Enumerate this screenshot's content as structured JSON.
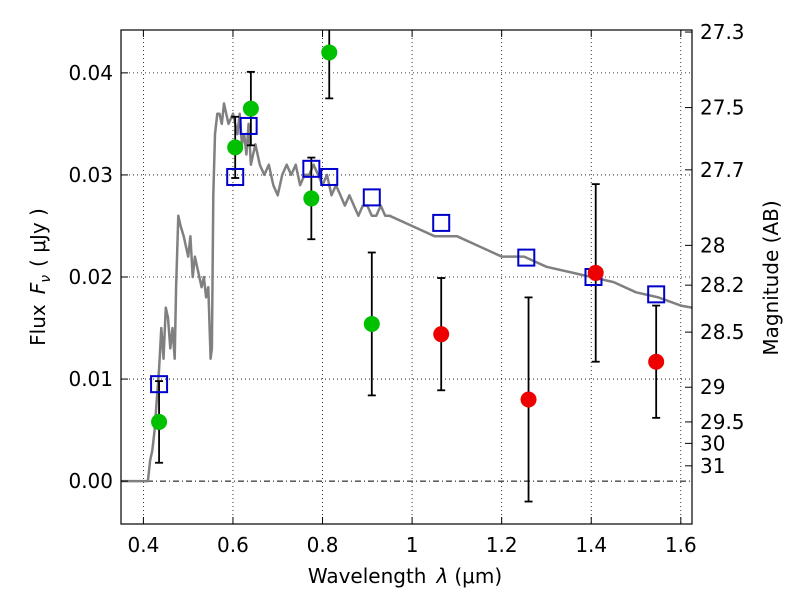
{
  "chart_data": {
    "type": "scatter",
    "xlabel": "Wavelength",
    "xlabel_symbol": "λ",
    "xlabel_unit": "(μm)",
    "ylabel": "Flux",
    "ylabel_symbol": "F",
    "ylabel_subscript": "ν",
    "ylabel_unit": "( μJy )",
    "y2label": "Magnitude (AB)",
    "xlim": [
      0.35,
      1.625
    ],
    "ylim": [
      -0.0042,
      0.0442
    ],
    "grid": true,
    "x_ticks": [
      0.4,
      0.6,
      0.8,
      1.0,
      1.2,
      1.4,
      1.6
    ],
    "x_tick_labels": [
      "0.4",
      "0.6",
      "0.8",
      "1",
      "1.2",
      "1.4",
      "1.6"
    ],
    "y_ticks": [
      0.0,
      0.01,
      0.02,
      0.03,
      0.04
    ],
    "y_tick_labels": [
      "0.00",
      "0.01",
      "0.02",
      "0.03",
      "0.04"
    ],
    "y2_ticks": [
      {
        "label": "27.3",
        "flux": 0.044
      },
      {
        "label": "27.5",
        "flux": 0.0366
      },
      {
        "label": "27.7",
        "flux": 0.0305
      },
      {
        "label": "28",
        "flux": 0.0231
      },
      {
        "label": "28.2",
        "flux": 0.0192
      },
      {
        "label": "28.5",
        "flux": 0.0146
      },
      {
        "label": "29",
        "flux": 0.0092
      },
      {
        "label": "29.5",
        "flux": 0.0058
      },
      {
        "label": "30",
        "flux": 0.0037
      },
      {
        "label": "31",
        "flux": 0.0015
      }
    ],
    "series": [
      {
        "kind": "line",
        "color": "#808080",
        "x": [
          0.35,
          0.41,
          0.415,
          0.42,
          0.425,
          0.43,
          0.435,
          0.44,
          0.445,
          0.45,
          0.455,
          0.46,
          0.465,
          0.47,
          0.473,
          0.478,
          0.483,
          0.49,
          0.495,
          0.5,
          0.505,
          0.51,
          0.515,
          0.52,
          0.53,
          0.535,
          0.54,
          0.545,
          0.55,
          0.553,
          0.556,
          0.56,
          0.565,
          0.57,
          0.575,
          0.58,
          0.585,
          0.59,
          0.6,
          0.605,
          0.61,
          0.615,
          0.62,
          0.625,
          0.63,
          0.635,
          0.64,
          0.645,
          0.65,
          0.66,
          0.67,
          0.68,
          0.69,
          0.7,
          0.71,
          0.72,
          0.73,
          0.74,
          0.75,
          0.76,
          0.77,
          0.78,
          0.79,
          0.8,
          0.81,
          0.82,
          0.83,
          0.84,
          0.85,
          0.86,
          0.87,
          0.88,
          0.89,
          0.9,
          0.91,
          0.92,
          0.93,
          0.94,
          0.95,
          1.0,
          1.05,
          1.1,
          1.15,
          1.2,
          1.25,
          1.3,
          1.35,
          1.4,
          1.45,
          1.5,
          1.55,
          1.6,
          1.625
        ],
        "y": [
          0.0,
          0.0,
          0.002,
          0.003,
          0.005,
          0.008,
          0.011,
          0.015,
          0.012,
          0.017,
          0.016,
          0.013,
          0.015,
          0.012,
          0.019,
          0.026,
          0.025,
          0.024,
          0.023,
          0.022,
          0.024,
          0.02,
          0.022,
          0.021,
          0.019,
          0.02,
          0.018,
          0.019,
          0.012,
          0.013,
          0.028,
          0.034,
          0.036,
          0.036,
          0.035,
          0.037,
          0.036,
          0.035,
          0.036,
          0.035,
          0.034,
          0.036,
          0.033,
          0.034,
          0.032,
          0.035,
          0.031,
          0.032,
          0.033,
          0.031,
          0.03,
          0.031,
          0.029,
          0.028,
          0.03,
          0.031,
          0.03,
          0.031,
          0.029,
          0.03,
          0.03,
          0.031,
          0.03,
          0.029,
          0.03,
          0.028,
          0.029,
          0.028,
          0.027,
          0.028,
          0.027,
          0.026,
          0.027,
          0.027,
          0.026,
          0.026,
          0.027,
          0.026,
          0.026,
          0.025,
          0.024,
          0.024,
          0.023,
          0.022,
          0.022,
          0.021,
          0.0205,
          0.02,
          0.0195,
          0.0185,
          0.018,
          0.0172,
          0.017
        ]
      },
      {
        "kind": "open-square",
        "color": "#0000cc",
        "x": [
          0.435,
          0.605,
          0.635,
          0.775,
          0.815,
          0.91,
          1.065,
          1.255,
          1.405,
          1.545
        ],
        "y": [
          0.0095,
          0.0298,
          0.0348,
          0.0306,
          0.0298,
          0.0278,
          0.0253,
          0.0219,
          0.02,
          0.0183
        ]
      },
      {
        "kind": "filled-circle",
        "color": "#00c000",
        "x": [
          0.435,
          0.605,
          0.64,
          0.775,
          0.815,
          0.91
        ],
        "y": [
          0.0058,
          0.0327,
          0.0365,
          0.0277,
          0.042,
          0.0154
        ],
        "err": [
          0.004,
          0.003,
          0.0036,
          0.004,
          0.0045,
          0.007
        ]
      },
      {
        "kind": "filled-circle",
        "color": "#ee0000",
        "x": [
          1.065,
          1.26,
          1.41,
          1.545
        ],
        "y": [
          0.0144,
          0.008,
          0.0204,
          0.0117
        ],
        "err": [
          0.0055,
          0.01,
          0.0087,
          0.0055
        ]
      }
    ]
  }
}
